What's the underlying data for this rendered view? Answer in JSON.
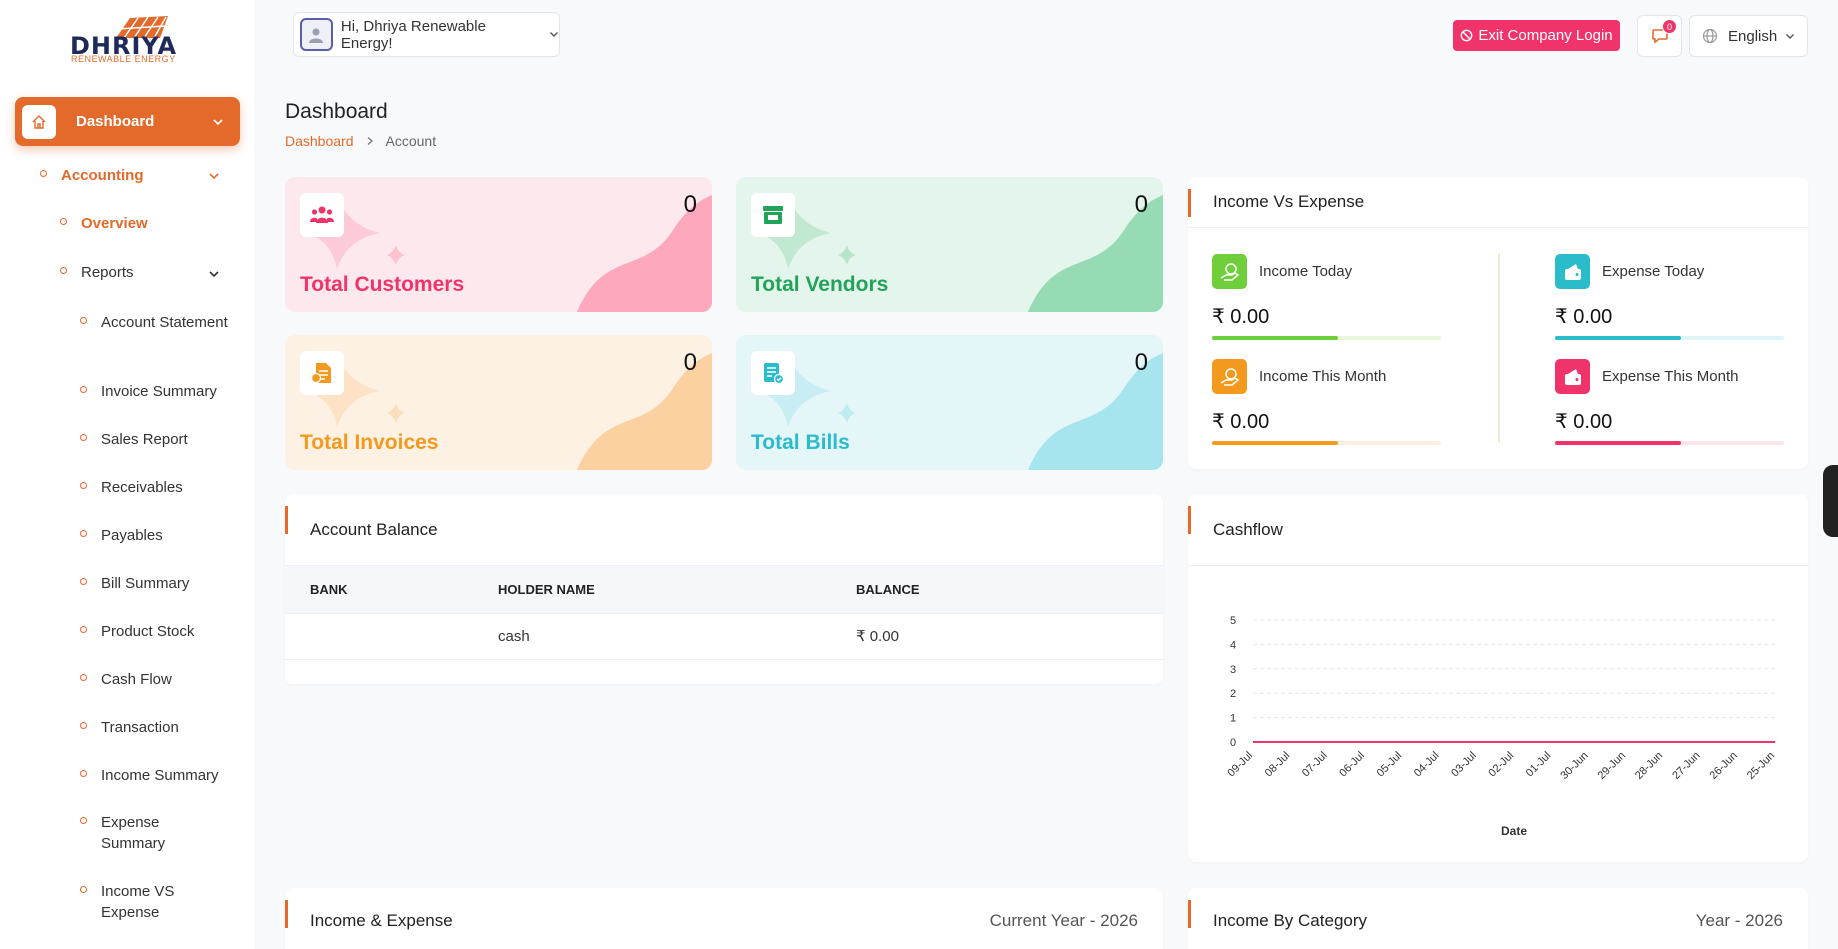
{
  "brand": {
    "logo_text": "DHRIYA",
    "logo_sub": "RENEWABLE ENERGY"
  },
  "sidebar": {
    "dashboard_label": "Dashboard",
    "accounting_label": "Accounting",
    "overview_label": "Overview",
    "reports_label": "Reports",
    "reports": [
      "Account Statement",
      "Invoice Summary",
      "Sales Report",
      "Receivables",
      "Payables",
      "Bill Summary",
      "Product Stock",
      "Cash Flow",
      "Transaction",
      "Income Summary",
      "Expense Summary",
      "Income VS Expense"
    ]
  },
  "header": {
    "greeting": "Hi, Dhriya Renewable Energy!",
    "exit_label": "Exit Company Login",
    "notification_count": "0",
    "language": "English"
  },
  "page": {
    "title": "Dashboard",
    "breadcrumb": [
      "Dashboard",
      "Account"
    ]
  },
  "stats": [
    {
      "label": "Total Customers",
      "count": "0",
      "color": "#f0336a",
      "bg": "#fde8ed",
      "blob": "#fda8bd",
      "icon": "users-icon"
    },
    {
      "label": "Total Vendors",
      "count": "0",
      "color": "#22a35a",
      "bg": "#e4f5ec",
      "blob": "#97dbb4",
      "icon": "store-icon"
    },
    {
      "label": "Total Invoices",
      "count": "0",
      "color": "#f39a1e",
      "bg": "#fdf1e4",
      "blob": "#fcd1a1",
      "icon": "invoice-icon"
    },
    {
      "label": "Total Bills",
      "count": "0",
      "color": "#2bbccc",
      "bg": "#e4f6f8",
      "blob": "#a6e5ee",
      "icon": "bill-icon"
    }
  ],
  "income_vs_expense": {
    "title": "Income Vs Expense",
    "items": [
      {
        "label": "Income Today",
        "value": "₹ 0.00",
        "color": "#6fcf3b",
        "track": "#e7f7df",
        "progress": 0.55
      },
      {
        "label": "Expense Today",
        "value": "₹ 0.00",
        "color": "#2bbccc",
        "track": "#dff4f7",
        "progress": 0.55
      },
      {
        "label": "Income This Month",
        "value": "₹ 0.00",
        "color": "#f39a1e",
        "track": "#fdf0df",
        "progress": 0.55
      },
      {
        "label": "Expense This Month",
        "value": "₹ 0.00",
        "color": "#f0336a",
        "track": "#fde3ea",
        "progress": 0.55
      }
    ]
  },
  "account_balance": {
    "title": "Account Balance",
    "columns": [
      "BANK",
      "HOLDER NAME",
      "BALANCE"
    ],
    "rows": [
      {
        "bank": "",
        "holder": "cash",
        "balance": "₹ 0.00"
      }
    ]
  },
  "cashflow": {
    "title": "Cashflow"
  },
  "chart_data": {
    "type": "line",
    "title": "",
    "xlabel": "Date",
    "ylabel": "",
    "ylim": [
      0,
      5
    ],
    "yticks": [
      0,
      1,
      2,
      3,
      4,
      5
    ],
    "x": [
      "09-Jul",
      "08-Jul",
      "07-Jul",
      "06-Jul",
      "05-Jul",
      "04-Jul",
      "03-Jul",
      "02-Jul",
      "01-Jul",
      "30-Jun",
      "29-Jun",
      "28-Jun",
      "27-Jun",
      "26-Jun",
      "25-Jun"
    ],
    "series": [
      {
        "values": [
          0,
          0,
          0,
          0,
          0,
          0,
          0,
          0,
          0,
          0,
          0,
          0,
          0,
          0,
          0
        ],
        "color": "#f0336a"
      }
    ],
    "grid": true
  },
  "income_expense": {
    "title": "Income & Expense",
    "subtitle": "Current Year - 2026"
  },
  "income_by_category": {
    "title": "Income By Category",
    "subtitle": "Year - 2026"
  }
}
